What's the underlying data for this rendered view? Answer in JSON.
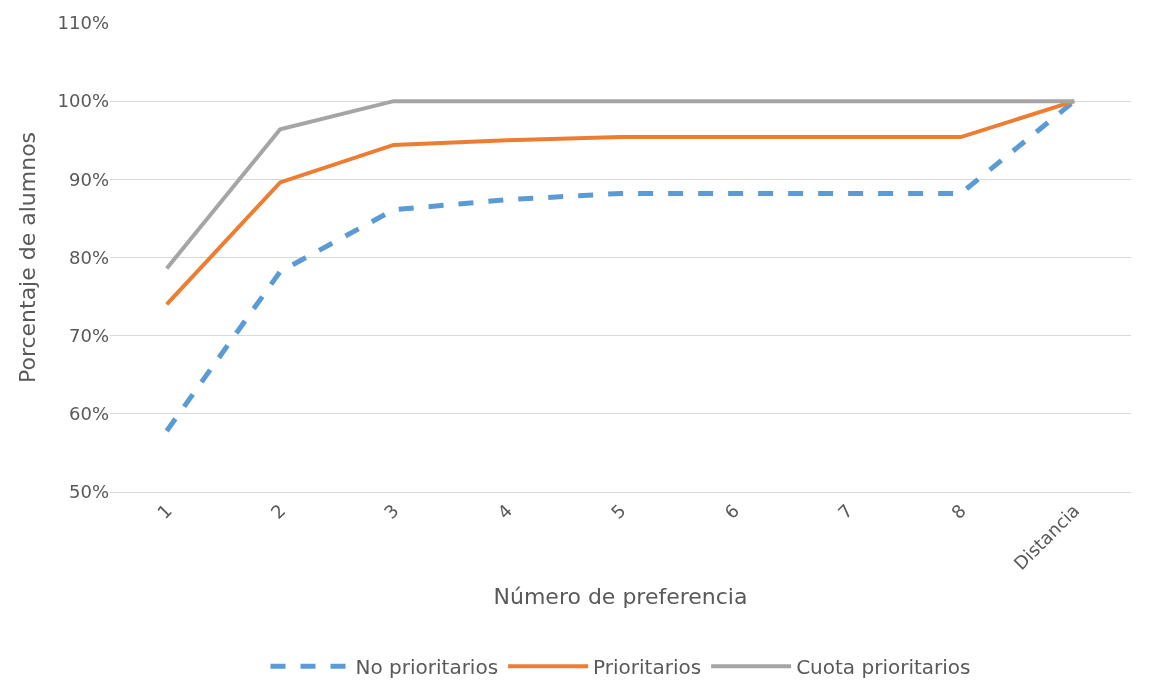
{
  "chart_data": {
    "type": "line",
    "xlabel": "Número de preferencia",
    "ylabel": "Porcentaje de alumnos",
    "categories": [
      "1",
      "2",
      "3",
      "4",
      "5",
      "6",
      "7",
      "8",
      "Distancia"
    ],
    "series": [
      {
        "name": "No prioritarios",
        "color": "#5b9bd5",
        "line_style": "dashed",
        "values": [
          57.8,
          78.2,
          86.1,
          87.4,
          88.2,
          88.2,
          88.2,
          88.2,
          100
        ]
      },
      {
        "name": "Prioritarios",
        "color": "#ed7d31",
        "line_style": "solid",
        "values": [
          74.0,
          89.6,
          94.4,
          95.0,
          95.4,
          95.4,
          95.4,
          95.4,
          100
        ]
      },
      {
        "name": "Cuota prioritarios",
        "color": "#a5a5a5",
        "line_style": "solid",
        "values": [
          78.6,
          96.4,
          100,
          100,
          100,
          100,
          100,
          100,
          100
        ]
      }
    ],
    "ylim": [
      50,
      110
    ],
    "yticks": [
      {
        "value": 50,
        "label": "50%"
      },
      {
        "value": 60,
        "label": "60%"
      },
      {
        "value": 70,
        "label": "70%"
      },
      {
        "value": 80,
        "label": "80%"
      },
      {
        "value": 90,
        "label": "90%"
      },
      {
        "value": 100,
        "label": "100%"
      },
      {
        "value": 110,
        "label": "110%"
      }
    ],
    "grid": "y",
    "legend": "bottom",
    "marker": "none"
  }
}
